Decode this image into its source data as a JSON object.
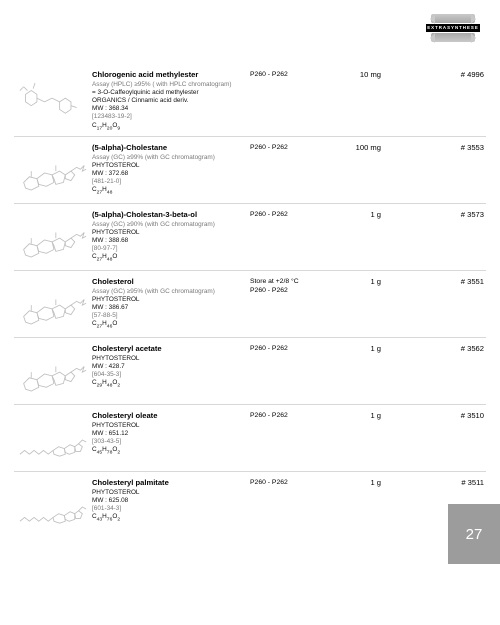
{
  "logo_text": "EXTRASYNTHESE",
  "page_number": "27",
  "entries": [
    {
      "title": "Chlorogenic acid methylester",
      "assay": "Assay (HPLC) ≥95% ( with HPLC chromatogram)",
      "alt_name": "= 3-O-Caffeoylquinic acid methylester",
      "category": "ORGANICS / Cinnamic acid deriv.",
      "mw": "MW : 368.34",
      "cas": "[123483-19-2]",
      "formula_html": "C<sub>17</sub>H<sub>20</sub>O<sub>9</sub>",
      "storage": "",
      "page_ref": "P260 - P262",
      "amount": "10 mg",
      "ref": "# 4996",
      "mol": "chlorogenic"
    },
    {
      "title": "(5-alpha)-Cholestane",
      "assay": "Assay (GC) ≥99% (with GC chromatogram)",
      "alt_name": "",
      "category": "PHYTOSTEROL",
      "mw": "MW : 372.68",
      "cas": "[481-21-0]",
      "formula_html": "C<sub>27</sub>H<sub>48</sub>",
      "storage": "",
      "page_ref": "P260 - P262",
      "amount": "100 mg",
      "ref": "# 3553",
      "mol": "steroid"
    },
    {
      "title": "(5-alpha)-Cholestan-3-beta-ol",
      "assay": "Assay (GC) ≥90% (with GC chromatogram)",
      "alt_name": "",
      "category": "PHYTOSTEROL",
      "mw": "MW : 388.68",
      "cas": "[80-97-7]",
      "formula_html": "C<sub>27</sub>H<sub>48</sub>O",
      "storage": "",
      "page_ref": "P260 - P262",
      "amount": "1 g",
      "ref": "# 3573",
      "mol": "steroid"
    },
    {
      "title": "Cholesterol",
      "assay": "Assay (GC) ≥95% (with GC chromatogram)",
      "alt_name": "",
      "category": "PHYTOSTEROL",
      "mw": "MW : 386.67",
      "cas": "[57-88-5]",
      "formula_html": "C<sub>27</sub>H<sub>46</sub>O",
      "storage": "Store at +2/8 °C",
      "page_ref": "P260 - P262",
      "amount": "1 g",
      "ref": "# 3551",
      "mol": "steroid"
    },
    {
      "title": "Cholesteryl acetate",
      "assay": "",
      "alt_name": "",
      "category": "PHYTOSTEROL",
      "mw": "MW : 428.7",
      "cas": "[604-35-3]",
      "formula_html": "C<sub>29</sub>H<sub>48</sub>O<sub>2</sub>",
      "storage": "",
      "page_ref": "P260 - P262",
      "amount": "1 g",
      "ref": "# 3562",
      "mol": "steroid"
    },
    {
      "title": "Cholesteryl oleate",
      "assay": "",
      "alt_name": "",
      "category": "PHYTOSTEROL",
      "mw": "MW : 651.12",
      "cas": "[303-43-5]",
      "formula_html": "C<sub>45</sub>H<sub>78</sub>O<sub>2</sub>",
      "storage": "",
      "page_ref": "P260 - P262",
      "amount": "1 g",
      "ref": "# 3510",
      "mol": "steroid_chain"
    },
    {
      "title": "Cholesteryl palmitate",
      "assay": "",
      "alt_name": "",
      "category": "PHYTOSTEROL",
      "mw": "MW : 625.08",
      "cas": "[601-34-3]",
      "formula_html": "C<sub>43</sub>H<sub>76</sub>O<sub>2</sub>",
      "storage": "",
      "page_ref": "P260 - P262",
      "amount": "1 g",
      "ref": "# 3511",
      "mol": "steroid_chain"
    }
  ]
}
